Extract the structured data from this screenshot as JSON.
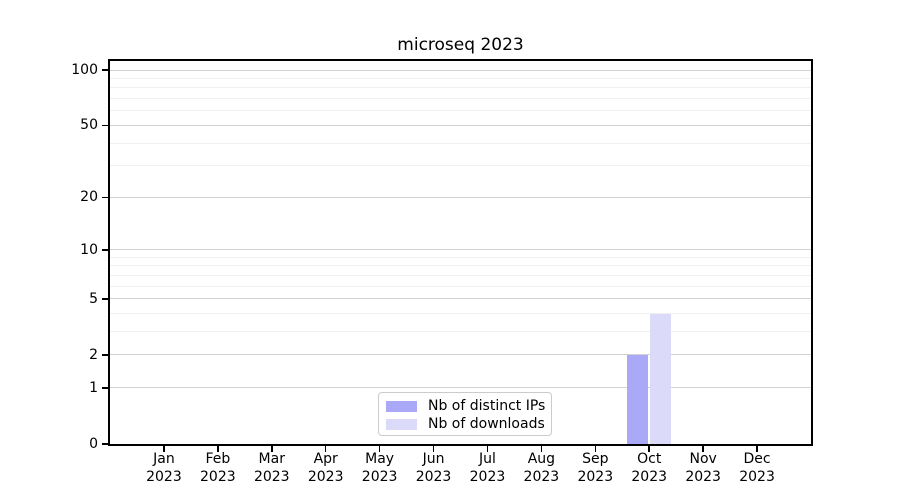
{
  "chart_data": {
    "type": "bar",
    "title": "microseq 2023",
    "categories": [
      {
        "month": "Jan",
        "year": "2023"
      },
      {
        "month": "Feb",
        "year": "2023"
      },
      {
        "month": "Mar",
        "year": "2023"
      },
      {
        "month": "Apr",
        "year": "2023"
      },
      {
        "month": "May",
        "year": "2023"
      },
      {
        "month": "Jun",
        "year": "2023"
      },
      {
        "month": "Jul",
        "year": "2023"
      },
      {
        "month": "Aug",
        "year": "2023"
      },
      {
        "month": "Sep",
        "year": "2023"
      },
      {
        "month": "Oct",
        "year": "2023"
      },
      {
        "month": "Nov",
        "year": "2023"
      },
      {
        "month": "Dec",
        "year": "2023"
      }
    ],
    "series": [
      {
        "name": "Nb of distinct IPs",
        "color": "#a9a9f7",
        "values": [
          0,
          0,
          0,
          0,
          0,
          0,
          0,
          0,
          0,
          2,
          0,
          0
        ]
      },
      {
        "name": "Nb of downloads",
        "color": "#dbdbf9",
        "values": [
          0,
          0,
          0,
          0,
          0,
          0,
          0,
          0,
          0,
          4,
          0,
          0
        ]
      }
    ],
    "yscale": "log1p",
    "yticks": [
      0,
      1,
      2,
      5,
      10,
      20,
      50,
      100
    ],
    "minor_yticks": [
      3,
      4,
      6,
      7,
      8,
      9,
      30,
      40,
      60,
      70,
      80,
      90
    ],
    "ylim": [
      0,
      112
    ],
    "xlabel": "",
    "ylabel": "",
    "grid": "both horizontal",
    "legend_position": "lower center"
  }
}
